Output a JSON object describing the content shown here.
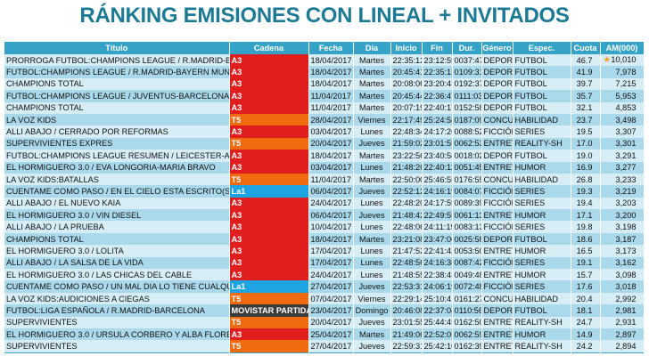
{
  "title": "RÁNKING EMISIONES CON LINEAL + INVITADOS",
  "headers": [
    "Título",
    "Cadena",
    "Fecha",
    "Día",
    "Inicio",
    "Fin",
    "Dur.",
    "Género",
    "Espec.",
    "Cuota",
    "AM(000)"
  ],
  "channel_colors": {
    "A3": "#e01e1e",
    "T5": "#f06a10",
    "La1": "#1ea3e3",
    "MOVISTAR PARTIDA": "#3a3a3a"
  },
  "top_icon": "star-icon",
  "rows": [
    [
      "PRORROGA FUTBOL:CHAMPIONS LEAGUE / R.MADRID-BAYI",
      "A3",
      "18/04/2017",
      "Martes",
      "22:35:12",
      "23:12:59",
      "0037:47",
      "DEPORT",
      "FUTBOL",
      "46.7",
      "10,010"
    ],
    [
      "FUTBOL:CHAMPIONS LEAGUE / R.MADRID-BAYERN MUNICH",
      "A3",
      "18/04/2017",
      "Martes",
      "20:45:41",
      "22:35:12",
      "0109:31",
      "DEPORT",
      "FUTBOL",
      "41.9",
      "7,978"
    ],
    [
      "CHAMPIONS TOTAL",
      "A3",
      "18/04/2017",
      "Martes",
      "20:08:06",
      "23:20:43",
      "0192:37",
      "DEPORT",
      "FUTBOL",
      "39.7",
      "7,215"
    ],
    [
      "FUTBOL:CHAMPIONS LEAGUE / JUVENTUS-BARCELONA",
      "A3",
      "11/04/2017",
      "Martes",
      "20:45:44",
      "22:36:47",
      "0111:03",
      "DEPORT",
      "FUTBOL",
      "35.7",
      "5,953"
    ],
    [
      "CHAMPIONS TOTAL",
      "A3",
      "11/04/2017",
      "Martes",
      "20:07:19",
      "22:40:17",
      "0152:58",
      "DEPORT",
      "FUTBOL",
      "32.1",
      "4,853"
    ],
    [
      "LA VOZ KIDS",
      "T5",
      "28/04/2017",
      "Viernes",
      "22:17:49",
      "25:24:58",
      "0187:09",
      "CONCUR",
      "HABILIDAD",
      "23.7",
      "3,498"
    ],
    [
      "ALLI ABAJO / CERRADO POR REFORMAS",
      "A3",
      "03/04/2017",
      "Lunes",
      "22:48:34",
      "24:17:26",
      "0088:52",
      "FICCIÓN",
      "SERIES",
      "19.5",
      "3,307"
    ],
    [
      "SUPERVIVIENTES EXPRES",
      "T5",
      "20/04/2017",
      "Jueves",
      "21:59:02",
      "23:01:55",
      "0062:53",
      "ENTRETI",
      "REALITY-SH",
      "17.0",
      "3,301"
    ],
    [
      "FUTBOL:CHAMPIONS LEAGUE RESUMEN / LEICESTER-AT.MA",
      "A3",
      "18/04/2017",
      "Martes",
      "23:22:56",
      "23:40:58",
      "0018:02",
      "DEPORT",
      "FUTBOL",
      "19.0",
      "3,291"
    ],
    [
      "EL HORMIGUERO 3.0 / EVA LONGORIA-MARIA BRAVO",
      "A3",
      "03/04/2017",
      "Lunes",
      "21:48:26",
      "22:40:11",
      "0051:45",
      "ENTRETI",
      "HUMOR",
      "16.9",
      "3,277"
    ],
    [
      "LA VOZ KIDS:BATALLAS",
      "T5",
      "11/04/2017",
      "Martes",
      "22:50:00",
      "25:46:55",
      "0176:55",
      "CONCUR",
      "HABILIDAD",
      "26.8",
      "3,233"
    ],
    [
      "CUENTAME COMO PASO / EN EL CIELO ESTA ESCRITO(SEREN",
      "La1",
      "06/04/2017",
      "Jueves",
      "22:52:12",
      "24:16:19",
      "0084:07",
      "FICCIÓN",
      "SERIES",
      "19.3",
      "3,219"
    ],
    [
      "ALLI ABAJO / EL NUEVO KAIA",
      "A3",
      "24/04/2017",
      "Lunes",
      "22:48:20",
      "24:17:59",
      "0089:39",
      "FICCIÓN",
      "SERIES",
      "19.4",
      "3,203"
    ],
    [
      "EL HORMIGUERO 3.0 / VIN DIESEL",
      "A3",
      "06/04/2017",
      "Jueves",
      "21:48:42",
      "22:49:55",
      "0061:13",
      "ENTRETI",
      "HUMOR",
      "17.1",
      "3,200"
    ],
    [
      "ALLI ABAJO / LA PRUEBA",
      "A3",
      "10/04/2017",
      "Lunes",
      "22:48:06",
      "24:11:19",
      "0083:13",
      "FICCIÓN",
      "SERIES",
      "19.8",
      "3,198"
    ],
    [
      "CHAMPIONS TOTAL",
      "A3",
      "18/04/2017",
      "Martes",
      "23:21:08",
      "23:47:06",
      "0025:58",
      "DEPORT",
      "FUTBOL",
      "18.6",
      "3,187"
    ],
    [
      "EL HORMIGUERO 3.0 / LOLITA",
      "A3",
      "17/04/2017",
      "Lunes",
      "21:47:52",
      "22:41:42",
      "0053:50",
      "ENTRETI",
      "HUMOR",
      "16.5",
      "3,173"
    ],
    [
      "ALLI ABAJO / LA SALSA DE LA VIDA",
      "A3",
      "17/04/2017",
      "Lunes",
      "22:48:56",
      "24:16:38",
      "0087:42",
      "FICCIÓN",
      "SERIES",
      "19.1",
      "3,162"
    ],
    [
      "EL HORMIGUERO 3.0 / LAS CHICAS DEL CABLE",
      "A3",
      "24/04/2017",
      "Lunes",
      "21:48:55",
      "22:38:43",
      "0049:48",
      "ENTRETI",
      "HUMOR",
      "15.7",
      "3,098"
    ],
    [
      "CUENTAME COMO PASO / UN MAL DIA LO TIENE CUALQUIE",
      "La1",
      "27/04/2017",
      "Jueves",
      "22:53:31",
      "24:06:19",
      "0072:48",
      "FICCIÓN",
      "SERIES",
      "17.6",
      "3,018"
    ],
    [
      "LA VOZ KIDS:AUDICIONES A CIEGAS",
      "T5",
      "07/04/2017",
      "Viernes",
      "22:29:14",
      "25:10:41",
      "0161:27",
      "CONCUR",
      "HABILIDAD",
      "20.4",
      "2,992"
    ],
    [
      "FUTBOL:LIGA ESPAÑOLA / R.MADRID-BARCELONA",
      "MOVISTAR PARTIDA",
      "23/04/2017",
      "Domingo",
      "20:46:08",
      "22:37:04",
      "0110:56",
      "DEPORT",
      "FUTBOL",
      "18.1",
      "2,981"
    ],
    [
      "SUPERVIVIENTES",
      "T5",
      "20/04/2017",
      "Jueves",
      "23:01:55",
      "25:44:45",
      "0162:50",
      "ENTRETI",
      "REALITY-SH",
      "24.7",
      "2,931"
    ],
    [
      "EL HORMIGUERO 3.0 / URSULA CORBERO Y ALBA FLORES",
      "A3",
      "25/04/2017",
      "Martes",
      "21:49:06",
      "22:52:05",
      "0062:59",
      "ENTRETI",
      "HUMOR",
      "14.9",
      "2,897"
    ],
    [
      "SUPERVIVIENTES",
      "T5",
      "27/04/2017",
      "Jueves",
      "22:59:31",
      "25:42:10",
      "0162:39",
      "ENTRETI",
      "REALITY-SH",
      "24.2",
      "2,894"
    ]
  ]
}
